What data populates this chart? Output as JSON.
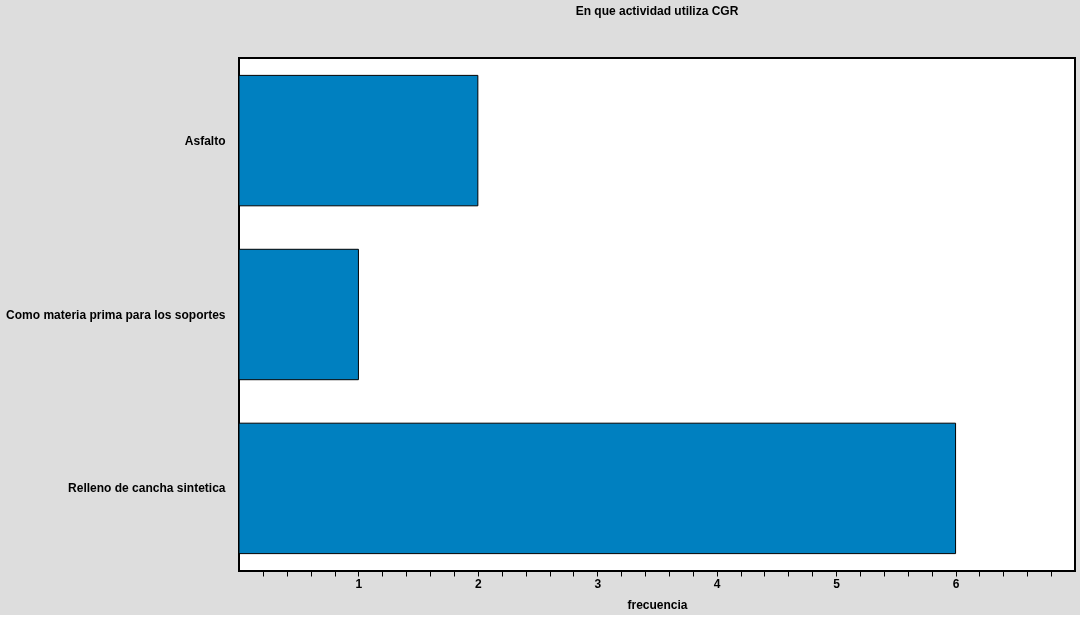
{
  "chart_data": {
    "type": "bar",
    "orientation": "horizontal",
    "title": "En que actividad utiliza CGR",
    "xlabel": "frecuencia",
    "categories": [
      "Asfalto",
      "Como materia prima para los soportes",
      "Relleno de cancha sintetica"
    ],
    "values": [
      2,
      1,
      6
    ],
    "color": "#0080c0",
    "xlim": [
      0,
      7
    ],
    "xticks": [
      {
        "value": 0.2,
        "label": null
      },
      {
        "value": 0.4,
        "label": null
      },
      {
        "value": 0.6,
        "label": null
      },
      {
        "value": 0.8,
        "label": null
      },
      1,
      {
        "value": 1.2,
        "label": null
      },
      {
        "value": 1.4,
        "label": null
      },
      {
        "value": 1.6,
        "label": null
      },
      {
        "value": 1.8,
        "label": null
      },
      2,
      {
        "value": 2.2,
        "label": null
      },
      {
        "value": 2.4,
        "label": null
      },
      {
        "value": 2.6,
        "label": null
      },
      {
        "value": 2.8,
        "label": null
      },
      3,
      {
        "value": 3.2,
        "label": null
      },
      {
        "value": 3.4,
        "label": null
      },
      {
        "value": 3.6,
        "label": null
      },
      {
        "value": 3.8,
        "label": null
      },
      4,
      {
        "value": 4.2,
        "label": null
      },
      {
        "value": 4.4,
        "label": null
      },
      {
        "value": 4.6,
        "label": null
      },
      {
        "value": 4.8,
        "label": null
      },
      5,
      {
        "value": 5.2,
        "label": null
      },
      {
        "value": 5.4,
        "label": null
      },
      {
        "value": 5.6,
        "label": null
      },
      {
        "value": 5.8,
        "label": null
      },
      6,
      {
        "value": 6.2,
        "label": null
      },
      {
        "value": 6.4,
        "label": null
      },
      {
        "value": 6.6,
        "label": null
      },
      {
        "value": 6.8,
        "label": null
      }
    ],
    "grid": false
  }
}
